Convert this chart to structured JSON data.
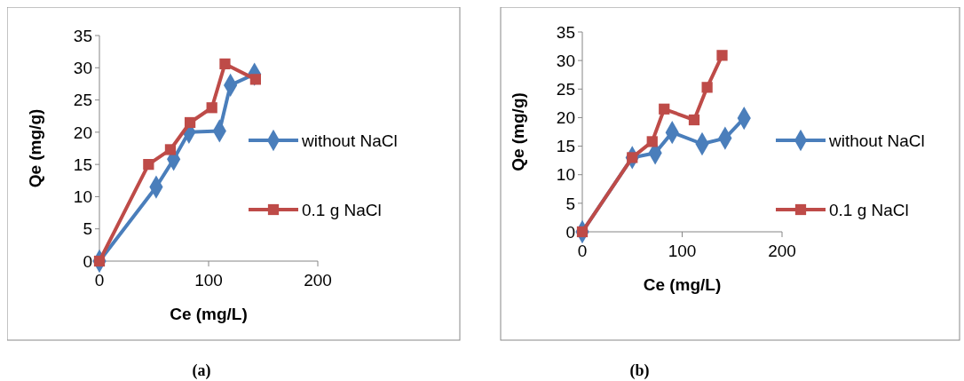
{
  "chart_data": [
    {
      "type": "line",
      "xlabel": "Ce (mg/L)",
      "ylabel": "Qe (mg/g)",
      "xlim": [
        0,
        200
      ],
      "xticks": [
        0,
        100,
        200
      ],
      "ylim": [
        0,
        35
      ],
      "yticks": [
        0,
        5,
        10,
        15,
        20,
        25,
        30,
        35
      ],
      "grid": false,
      "legend": "right",
      "line_style": "solid",
      "annotations": [
        "(a)"
      ],
      "series": [
        {
          "name": "without NaCl",
          "color": "#4a7ebb",
          "marker": "diamond",
          "x": [
            0,
            52,
            68,
            82,
            110,
            120,
            142
          ],
          "values": [
            0,
            11.5,
            15.8,
            20,
            20.2,
            27.3,
            29
          ]
        },
        {
          "name": "0.1 g NaCl",
          "color": "#be4b48",
          "marker": "square",
          "x": [
            0,
            45,
            65,
            83,
            103,
            115,
            143
          ],
          "values": [
            0,
            15,
            17.3,
            21.5,
            23.8,
            30.6,
            28.2
          ]
        }
      ]
    },
    {
      "type": "line",
      "xlabel": "Ce (mg/L)",
      "ylabel": "Qe (mg/g)",
      "xlim": [
        0,
        200
      ],
      "xticks": [
        0,
        100,
        200
      ],
      "ylim": [
        0,
        35
      ],
      "yticks": [
        0,
        5,
        10,
        15,
        20,
        25,
        30,
        35
      ],
      "grid": false,
      "legend": "right",
      "line_style": "solid",
      "annotations": [
        "(b)"
      ],
      "series": [
        {
          "name": "without NaCl",
          "color": "#4a7ebb",
          "marker": "diamond",
          "x": [
            0,
            50,
            73,
            90,
            120,
            143,
            162
          ],
          "values": [
            0,
            13,
            13.8,
            17.4,
            15.4,
            16.4,
            19.9
          ]
        },
        {
          "name": "0.1 g NaCl",
          "color": "#be4b48",
          "marker": "square",
          "x": [
            0,
            50,
            70,
            82,
            112,
            125,
            140
          ],
          "values": [
            0,
            13,
            15.8,
            21.5,
            19.6,
            25.3,
            30.9
          ]
        }
      ]
    }
  ]
}
